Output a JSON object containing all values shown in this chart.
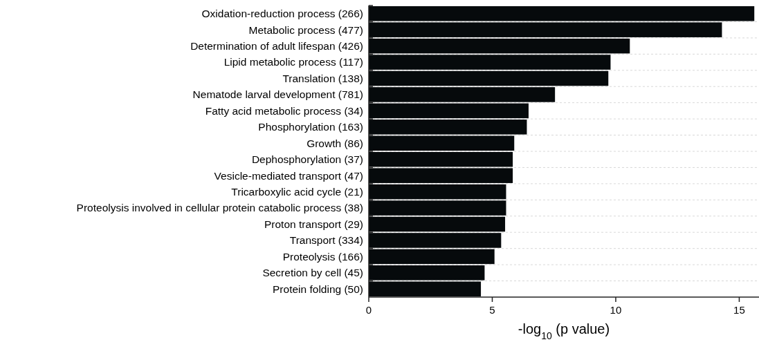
{
  "chart_data": {
    "type": "bar",
    "orientation": "horizontal",
    "xlabel": "-log$_{10}$ (p value)",
    "categories": [
      "Oxidation-reduction process (266)",
      "Metabolic process (477)",
      "Determination of adult lifespan (426)",
      "Lipid metabolic process (117)",
      "Translation (138)",
      "Nematode larval development (781)",
      "Fatty acid metabolic process (34)",
      "Phosphorylation (163)",
      "Growth (86)",
      "Dephosphorylation (37)",
      "Vesicle-mediated transport (47)",
      "Tricarboxylic acid cycle (21)",
      "Proteolysis involved in cellular protein catabolic process (38)",
      "Proton transport (29)",
      "Transport (334)",
      "Proteolysis (166)",
      "Secretion by cell (45)",
      "Protein folding (50)"
    ],
    "values": [
      15.61,
      14.3,
      10.57,
      9.79,
      9.7,
      7.54,
      6.47,
      6.4,
      5.89,
      5.83,
      5.83,
      5.56,
      5.56,
      5.52,
      5.36,
      5.09,
      4.69,
      4.54
    ],
    "color": "#060a0c",
    "xlim": [
      0,
      15.8
    ],
    "xticks": [
      0,
      5,
      10,
      15
    ],
    "grid": "y"
  }
}
